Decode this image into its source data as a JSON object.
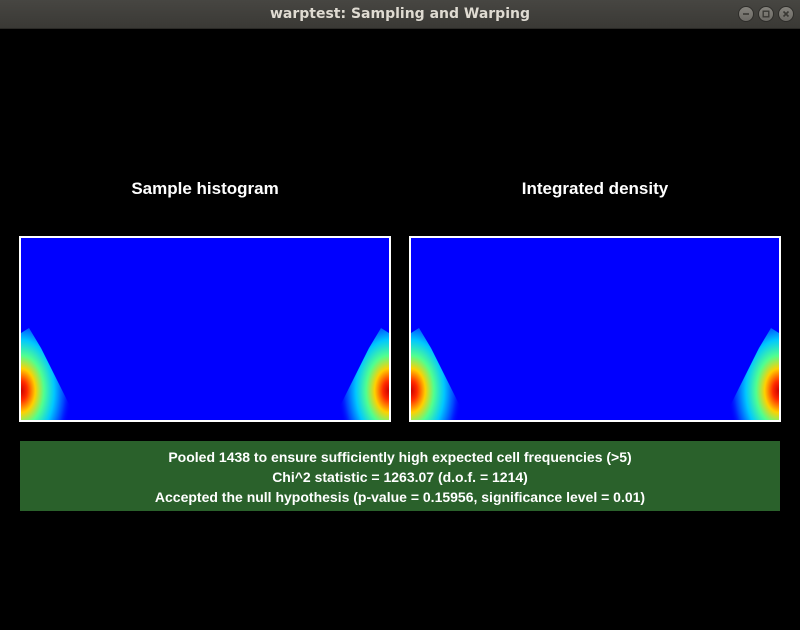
{
  "window": {
    "title": "warptest: Sampling and Warping",
    "controls": [
      "minimize-icon",
      "maximize-icon",
      "close-icon"
    ]
  },
  "panels": {
    "left_title": "Sample histogram",
    "right_title": "Integrated density"
  },
  "results": {
    "line1": "Pooled 1438 to ensure sufficiently high expected cell frequencies (>5)",
    "line2": "Chi^2 statistic = 1263.07 (d.o.f. = 1214)",
    "line3": "Accepted the null hypothesis (p-value = 0.15956, significance level = 0.01)",
    "background_color": "#2a612b"
  },
  "heatmap_colors": {
    "background": "#0000ff",
    "colormap": "jet"
  }
}
